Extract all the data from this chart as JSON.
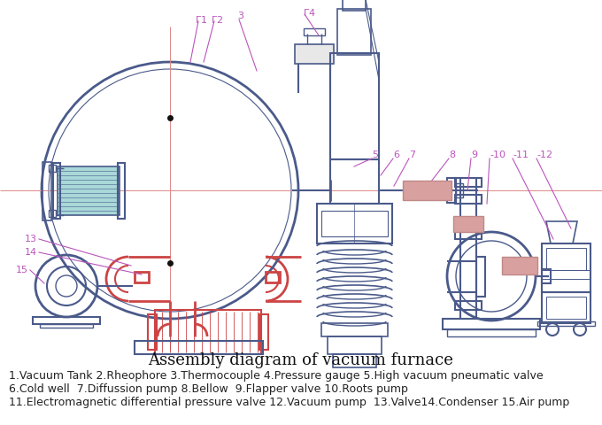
{
  "title": "Assembly diagram of vacuum furnace",
  "caption_lines": [
    "1.Vacuum Tank 2.Rheophore 3.Thermocouple 4.Pressure gauge 5.High vacuum pneumatic valve",
    "6.Cold well  7.Diffussion pump 8.Bellow  9.Flapper valve 10.Roots pump",
    "11.Electromagnetic differential pressure valve 12.Vacuum pump  13.Valve14.Condenser 15.Air pump"
  ],
  "label_color": "#bb55bb",
  "drawing_color": "#4a5a8a",
  "red_color": "#cc4444",
  "highlight_color": "#d9a0a0",
  "bg_color": "#ffffff",
  "title_fontsize": 13,
  "caption_fontsize": 9,
  "label_fontsize": 8
}
